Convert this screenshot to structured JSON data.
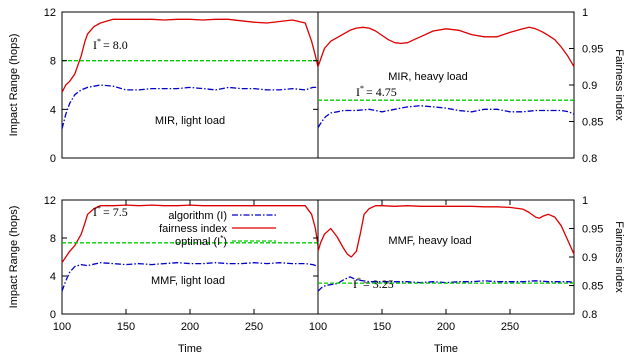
{
  "axes": {
    "left_ylabel": "Impact Range (hops)",
    "right_ylabel": "Fairness index",
    "xlabel": "Time"
  },
  "legend": {
    "algorithm": "algorithm (I)",
    "fairness": "fairness index",
    "optimal": "optimal (I*)",
    "optimal_base": "optimal (I",
    "optimal_sup": "*",
    "optimal_close": ")"
  },
  "colors": {
    "algorithm": "#0000cc",
    "fairness": "#dd0000",
    "optimal": "#00cc00"
  },
  "chart_data": [
    {
      "id": "mir_light",
      "type": "line",
      "annotation": "MIR, light load",
      "istar_label": "I* = 8.0",
      "istar_text": "= 8.0",
      "xlabel": "",
      "ylabel": "Impact Range (hops)",
      "y2label": "Fairness index",
      "xlim": [
        100,
        300
      ],
      "ylim": [
        0,
        12
      ],
      "y2lim": [
        0.8,
        1.0
      ],
      "x_ticks": [],
      "y_ticks": [
        0,
        4,
        8,
        12
      ],
      "y2_ticks": [],
      "series": [
        {
          "key": "algorithm",
          "axis": "left",
          "style": "dashdot",
          "x": [
            100,
            103,
            106,
            110,
            115,
            120,
            130,
            140,
            150,
            160,
            170,
            180,
            190,
            200,
            210,
            220,
            230,
            240,
            250,
            260,
            270,
            280,
            290,
            296,
            300
          ],
          "values": [
            2.4,
            3.6,
            4.5,
            5.2,
            5.6,
            5.8,
            6.0,
            5.9,
            5.6,
            5.6,
            5.7,
            5.7,
            5.7,
            5.8,
            5.7,
            5.6,
            5.8,
            5.7,
            5.7,
            5.6,
            5.6,
            5.7,
            5.6,
            5.8,
            5.8
          ]
        },
        {
          "key": "fairness",
          "axis": "right",
          "style": "solid",
          "x": [
            100,
            103,
            106,
            110,
            115,
            118,
            120,
            125,
            130,
            140,
            150,
            160,
            170,
            180,
            190,
            200,
            210,
            220,
            230,
            240,
            250,
            260,
            270,
            280,
            290,
            295,
            298,
            300
          ],
          "values": [
            0.89,
            0.9,
            0.905,
            0.915,
            0.94,
            0.96,
            0.97,
            0.98,
            0.985,
            0.99,
            0.99,
            0.99,
            0.99,
            0.989,
            0.99,
            0.99,
            0.989,
            0.99,
            0.99,
            0.988,
            0.986,
            0.985,
            0.987,
            0.989,
            0.985,
            0.96,
            0.94,
            0.925
          ]
        },
        {
          "key": "optimal",
          "axis": "left",
          "style": "dashed",
          "x": [
            100,
            300
          ],
          "values": [
            8.0,
            8.0
          ]
        }
      ]
    },
    {
      "id": "mir_heavy",
      "type": "line",
      "annotation": "MIR, heavy load",
      "istar_label": "I* = 4.75",
      "istar_text": "= 4.75",
      "xlabel": "",
      "ylabel": "Impact Range (hops)",
      "y2label": "Fairness index",
      "xlim": [
        100,
        300
      ],
      "ylim": [
        0,
        12
      ],
      "y2lim": [
        0.8,
        1.0
      ],
      "x_ticks": [],
      "y_ticks": [],
      "y2_ticks": [
        0.8,
        0.85,
        0.9,
        0.95,
        1
      ],
      "series": [
        {
          "key": "algorithm",
          "axis": "left",
          "style": "dashdot",
          "x": [
            100,
            103,
            106,
            110,
            115,
            120,
            130,
            140,
            150,
            160,
            170,
            180,
            190,
            200,
            210,
            220,
            230,
            240,
            250,
            260,
            270,
            280,
            290,
            296,
            300
          ],
          "values": [
            2.5,
            3.0,
            3.4,
            3.7,
            3.8,
            3.9,
            3.9,
            4.0,
            3.8,
            4.0,
            4.2,
            4.3,
            4.2,
            4.1,
            3.9,
            3.8,
            4.0,
            4.0,
            3.8,
            3.8,
            3.9,
            3.9,
            3.9,
            3.8,
            3.6
          ]
        },
        {
          "key": "fairness",
          "axis": "right",
          "style": "solid",
          "x": [
            100,
            102,
            105,
            110,
            115,
            120,
            125,
            130,
            135,
            140,
            145,
            150,
            155,
            160,
            165,
            170,
            175,
            180,
            190,
            200,
            210,
            220,
            230,
            240,
            250,
            260,
            265,
            270,
            275,
            280,
            285,
            290,
            295,
            300
          ],
          "values": [
            0.925,
            0.935,
            0.95,
            0.96,
            0.965,
            0.97,
            0.975,
            0.978,
            0.979,
            0.978,
            0.974,
            0.968,
            0.962,
            0.958,
            0.957,
            0.958,
            0.962,
            0.966,
            0.974,
            0.977,
            0.975,
            0.969,
            0.966,
            0.966,
            0.972,
            0.977,
            0.979,
            0.977,
            0.973,
            0.968,
            0.962,
            0.952,
            0.94,
            0.925
          ]
        },
        {
          "key": "optimal",
          "axis": "left",
          "style": "dashed",
          "x": [
            100,
            300
          ],
          "values": [
            4.75,
            4.75
          ]
        }
      ]
    },
    {
      "id": "mmf_light",
      "type": "line",
      "annotation": "MMF, light load",
      "istar_label": "I* = 7.5",
      "istar_text": "= 7.5",
      "xlabel": "Time",
      "ylabel": "Impact Range (hops)",
      "y2label": "Fairness index",
      "xlim": [
        100,
        300
      ],
      "ylim": [
        0,
        12
      ],
      "y2lim": [
        0.8,
        1.0
      ],
      "x_ticks": [
        100,
        150,
        200,
        250
      ],
      "y_ticks": [
        0,
        4,
        8,
        12
      ],
      "y2_ticks": [],
      "series": [
        {
          "key": "algorithm",
          "axis": "left",
          "style": "dashdot",
          "x": [
            100,
            103,
            106,
            110,
            115,
            120,
            130,
            140,
            150,
            160,
            170,
            180,
            190,
            200,
            210,
            220,
            230,
            240,
            250,
            260,
            270,
            280,
            290,
            296,
            300
          ],
          "values": [
            2.4,
            3.5,
            4.4,
            5.0,
            5.2,
            5.1,
            5.4,
            5.3,
            5.2,
            5.3,
            5.2,
            5.3,
            5.4,
            5.3,
            5.3,
            5.4,
            5.3,
            5.3,
            5.4,
            5.3,
            5.4,
            5.3,
            5.3,
            5.2,
            5.0
          ]
        },
        {
          "key": "fairness",
          "axis": "right",
          "style": "solid",
          "x": [
            100,
            103,
            106,
            110,
            115,
            118,
            120,
            125,
            130,
            140,
            150,
            160,
            170,
            180,
            190,
            200,
            210,
            220,
            230,
            240,
            250,
            260,
            270,
            280,
            290,
            295,
            298,
            300
          ],
          "values": [
            0.89,
            0.9,
            0.91,
            0.92,
            0.94,
            0.96,
            0.975,
            0.985,
            0.99,
            0.99,
            0.991,
            0.99,
            0.991,
            0.99,
            0.99,
            0.991,
            0.99,
            0.99,
            0.99,
            0.99,
            0.99,
            0.99,
            0.99,
            0.99,
            0.99,
            0.975,
            0.95,
            0.92
          ]
        },
        {
          "key": "optimal",
          "axis": "left",
          "style": "dashed",
          "x": [
            100,
            300
          ],
          "values": [
            7.5,
            7.5
          ]
        }
      ]
    },
    {
      "id": "mmf_heavy",
      "type": "line",
      "annotation": "MMF, heavy load",
      "istar_label": "I* = 3.25",
      "istar_text": "= 3.25",
      "xlabel": "Time",
      "ylabel": "Impact Range (hops)",
      "y2label": "Fairness index",
      "xlim": [
        100,
        300
      ],
      "ylim": [
        0,
        12
      ],
      "y2lim": [
        0.8,
        1.0
      ],
      "x_ticks": [
        100,
        150,
        200,
        250
      ],
      "y_ticks": [],
      "y2_ticks": [
        0.8,
        0.85,
        0.9,
        0.95,
        1
      ],
      "series": [
        {
          "key": "algorithm",
          "axis": "left",
          "style": "dashdot",
          "x": [
            100,
            103,
            106,
            110,
            115,
            120,
            125,
            130,
            140,
            150,
            160,
            170,
            180,
            190,
            200,
            210,
            220,
            230,
            240,
            250,
            260,
            270,
            280,
            290,
            296,
            300
          ],
          "values": [
            2.4,
            2.8,
            3.0,
            3.1,
            3.2,
            3.6,
            3.9,
            3.6,
            3.4,
            3.4,
            3.4,
            3.4,
            3.3,
            3.4,
            3.3,
            3.4,
            3.4,
            3.5,
            3.4,
            3.4,
            3.4,
            3.5,
            3.4,
            3.4,
            3.4,
            3.3
          ]
        },
        {
          "key": "fairness",
          "axis": "right",
          "style": "solid",
          "x": [
            100,
            102,
            105,
            110,
            115,
            120,
            123,
            126,
            130,
            133,
            136,
            140,
            145,
            150,
            160,
            170,
            180,
            190,
            200,
            210,
            220,
            230,
            240,
            250,
            260,
            265,
            270,
            273,
            276,
            280,
            285,
            290,
            295,
            300
          ],
          "values": [
            0.91,
            0.925,
            0.94,
            0.95,
            0.935,
            0.915,
            0.905,
            0.9,
            0.91,
            0.94,
            0.975,
            0.985,
            0.99,
            0.99,
            0.989,
            0.99,
            0.989,
            0.989,
            0.989,
            0.989,
            0.989,
            0.988,
            0.988,
            0.987,
            0.984,
            0.978,
            0.97,
            0.968,
            0.972,
            0.975,
            0.97,
            0.955,
            0.93,
            0.905
          ]
        },
        {
          "key": "optimal",
          "axis": "left",
          "style": "dashed",
          "x": [
            100,
            300
          ],
          "values": [
            3.25,
            3.25
          ]
        }
      ]
    }
  ]
}
